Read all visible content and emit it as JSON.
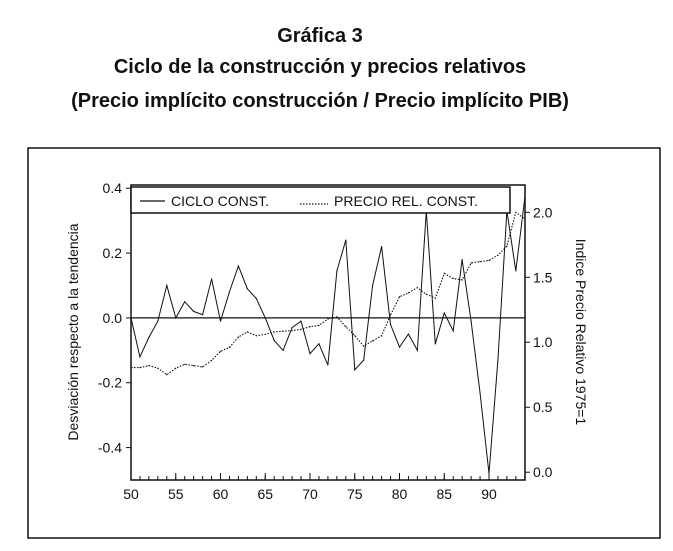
{
  "heading": {
    "line1": "Gráfica 3",
    "line2": "Ciclo de la construcción y precios relativos",
    "line3": "(Precio implícito construcción / Precio implícito PIB)"
  },
  "chart_data": {
    "type": "line",
    "title": "Ciclo de la construcción y precios relativos",
    "xlabel": "",
    "ylabel_left": "Desviación respecto a la tendencia",
    "ylabel_right": "Indice Precio Relativo 1975=1",
    "x": [
      50,
      51,
      52,
      53,
      54,
      55,
      56,
      57,
      58,
      59,
      60,
      61,
      62,
      63,
      64,
      65,
      66,
      67,
      68,
      69,
      70,
      71,
      72,
      73,
      74,
      75,
      76,
      77,
      78,
      79,
      80,
      81,
      82,
      83,
      84,
      85,
      86,
      87,
      88,
      89,
      90,
      91,
      92,
      93,
      94
    ],
    "x_ticks": [
      "50",
      "55",
      "60",
      "65",
      "70",
      "75",
      "80",
      "85",
      "90"
    ],
    "y_left_ticks": [
      "0.4",
      "0.2",
      "0.0",
      "-0.2",
      "-0.4"
    ],
    "y_right_ticks": [
      "2.0",
      "1.5",
      "1.0",
      "0.5",
      "0.0"
    ],
    "ylim_left": [
      -0.5,
      0.41
    ],
    "ylim_right": [
      -0.06,
      2.21
    ],
    "zero_line": 0.0,
    "legend_position": "top",
    "series": [
      {
        "name": "CICLO CONST.",
        "axis": "left",
        "style": "solid",
        "values": [
          0.0,
          -0.12,
          -0.06,
          -0.01,
          0.1,
          0.0,
          0.05,
          0.02,
          0.01,
          0.12,
          -0.01,
          0.08,
          0.16,
          0.09,
          0.06,
          0.0,
          -0.07,
          -0.1,
          -0.03,
          -0.01,
          -0.11,
          -0.08,
          -0.145,
          0.145,
          0.24,
          -0.16,
          -0.13,
          0.1,
          0.22,
          -0.02,
          -0.09,
          -0.05,
          -0.1,
          0.33,
          -0.08,
          0.015,
          -0.04,
          0.18,
          -0.01,
          -0.23,
          -0.48,
          -0.13,
          0.33,
          0.145,
          0.37
        ]
      },
      {
        "name": "PRECIO REL. CONST.",
        "axis": "right",
        "style": "dotted",
        "values": [
          0.805,
          0.805,
          0.82,
          0.8,
          0.75,
          0.8,
          0.83,
          0.82,
          0.81,
          0.86,
          0.93,
          0.96,
          1.04,
          1.08,
          1.05,
          1.06,
          1.08,
          1.085,
          1.09,
          1.1,
          1.12,
          1.13,
          1.18,
          1.195,
          1.12,
          1.05,
          0.97,
          1.01,
          1.05,
          1.21,
          1.35,
          1.38,
          1.42,
          1.37,
          1.34,
          1.53,
          1.49,
          1.48,
          1.61,
          1.62,
          1.63,
          1.67,
          1.74,
          2.0,
          1.95
        ]
      }
    ]
  }
}
